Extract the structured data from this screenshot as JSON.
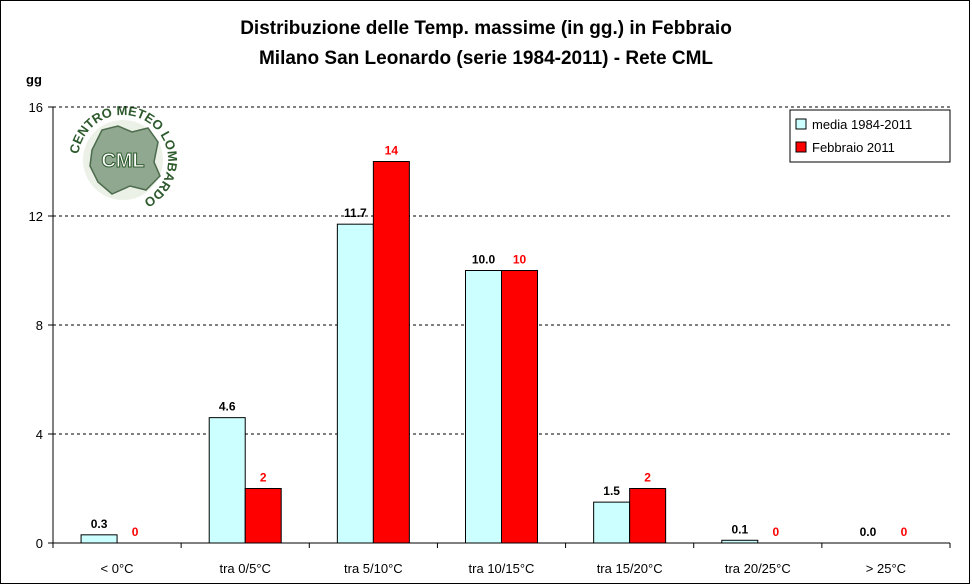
{
  "chart_data": {
    "type": "bar",
    "title": [
      "Distribuzione delle Temp. massime (in gg.) in Febbraio",
      "Milano San Leonardo (serie 1984-2011) - Rete CML"
    ],
    "ylabel": "gg",
    "xlabel": "",
    "ylim": [
      0,
      16
    ],
    "yticks": [
      0,
      4,
      8,
      12,
      16
    ],
    "grid": "horizontal dashed",
    "legend_position": "top-right",
    "categories": [
      "< 0°C",
      "tra 0/5°C",
      "tra 5/10°C",
      "tra 10/15°C",
      "tra 15/20°C",
      "tra 20/25°C",
      "> 25°C"
    ],
    "series": [
      {
        "name": "media 1984-2011",
        "color": "#ccffff",
        "label_color": "#000000",
        "values": [
          0.3,
          4.6,
          11.7,
          10.0,
          1.5,
          0.1,
          0.0
        ],
        "labels": [
          "0.3",
          "4.6",
          "11.7",
          "10.0",
          "1.5",
          "0.1",
          "0.0"
        ]
      },
      {
        "name": "Febbraio 2011",
        "color": "#ff0000",
        "label_color": "#ff0000",
        "values": [
          0,
          2,
          14,
          10,
          2,
          0,
          0
        ],
        "labels": [
          "0",
          "2",
          "14",
          "10",
          "2",
          "0",
          "0"
        ]
      }
    ]
  },
  "logo": {
    "ring_text": "CENTRO METEO LOMBARDO",
    "center_text": "CML"
  }
}
